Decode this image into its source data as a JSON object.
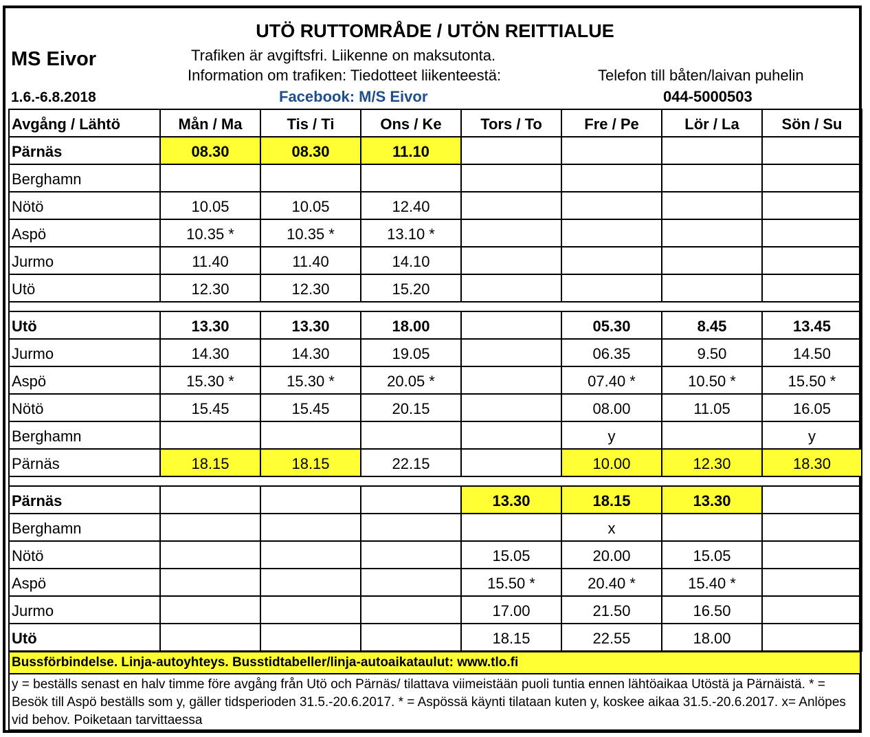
{
  "header": {
    "title": "UTÖ RUTTOMRÅDE / UTÖN REITTIALUE",
    "ship": "MS Eivor",
    "dates": "1.6.-6.8.2018",
    "line1": "Trafiken är avgiftsfri.  Liikenne on maksutonta.",
    "line2": "Information om trafiken: Tiedotteet liikenteestä:",
    "facebook": "Facebook: M/S Eivor",
    "phone_label": "Telefon till båten/laivan puhelin",
    "phone_number": "044-5000503"
  },
  "table": {
    "columns": [
      "Avgång / Lähtö",
      "Mån / Ma",
      "Tis / Ti",
      "Ons / Ke",
      "Tors / To",
      "Fre / Pe",
      "Lör / La",
      "Sön / Su"
    ],
    "sections": [
      {
        "rows": [
          {
            "stop": "Pärnäs",
            "bold": true,
            "cells": [
              "08.30",
              "08.30",
              "11.10",
              "",
              "",
              "",
              ""
            ],
            "highlight": [
              0,
              1,
              2
            ]
          },
          {
            "stop": "Berghamn",
            "cells": [
              "",
              "",
              "",
              "",
              "",
              "",
              ""
            ]
          },
          {
            "stop": "Nötö",
            "cells": [
              "10.05",
              "10.05",
              "12.40",
              "",
              "",
              "",
              ""
            ]
          },
          {
            "stop": "Aspö",
            "cells": [
              "10.35 *",
              "10.35 *",
              "13.10 *",
              "",
              "",
              "",
              ""
            ]
          },
          {
            "stop": "Jurmo",
            "cells": [
              "11.40",
              "11.40",
              "14.10",
              "",
              "",
              "",
              ""
            ]
          },
          {
            "stop": "Utö",
            "cells": [
              "12.30",
              "12.30",
              "15.20",
              "",
              "",
              "",
              ""
            ]
          }
        ]
      },
      {
        "rows": [
          {
            "stop": "Utö",
            "bold": true,
            "cells": [
              "13.30",
              "13.30",
              "18.00",
              "",
              "05.30",
              "8.45",
              "13.45"
            ]
          },
          {
            "stop": "Jurmo",
            "cells": [
              "14.30",
              "14.30",
              "19.05",
              "",
              "06.35",
              "9.50",
              "14.50"
            ]
          },
          {
            "stop": "Aspö",
            "cells": [
              "15.30 *",
              "15.30 *",
              "20.05 *",
              "",
              "07.40 *",
              "10.50 *",
              "15.50 *"
            ]
          },
          {
            "stop": "Nötö",
            "cells": [
              "15.45",
              "15.45",
              "20.15",
              "",
              "08.00",
              "11.05",
              "16.05"
            ]
          },
          {
            "stop": "Berghamn",
            "cells": [
              "",
              "",
              "",
              "",
              "y",
              "",
              "y"
            ]
          },
          {
            "stop": "Pärnäs",
            "cells": [
              "18.15",
              "18.15",
              "22.15",
              "",
              "10.00",
              "12.30",
              "18.30"
            ],
            "highlight": [
              0,
              1,
              4,
              5,
              6
            ]
          }
        ]
      },
      {
        "rows": [
          {
            "stop": "Pärnäs",
            "bold": true,
            "cells": [
              "",
              "",
              "",
              "13.30",
              "18.15",
              "13.30",
              ""
            ],
            "highlight": [
              3,
              4,
              5
            ]
          },
          {
            "stop": "Berghamn",
            "cells": [
              "",
              "",
              "",
              "",
              "x",
              "",
              ""
            ]
          },
          {
            "stop": "Nötö",
            "cells": [
              "",
              "",
              "",
              "15.05",
              "20.00",
              "15.05",
              ""
            ]
          },
          {
            "stop": "Aspö",
            "cells": [
              "",
              "",
              "",
              "15.50 *",
              "20.40 *",
              "15.40 *",
              ""
            ]
          },
          {
            "stop": "Jurmo",
            "cells": [
              "",
              "",
              "",
              "17.00",
              "21.50",
              "16.50",
              ""
            ]
          },
          {
            "stop": "Utö",
            "bold_stop": true,
            "cells": [
              "",
              "",
              "",
              "18.15",
              "22.55",
              "18.00",
              ""
            ]
          }
        ]
      }
    ]
  },
  "footer": {
    "bus": "Bussförbindelse.  Linja-autoyhteys.  Busstidtabeller/linja-autoaikataulut: www.tlo.fi",
    "notes": "y = beställs senast en halv timme före avgång från Utö och Pärnäs/ tilattava viimeistään puoli tuntia ennen lähtöaikaa Utöstä ja Pärnäistä.    * = Besök till Aspö beställs som y, gäller tidsperioden 31.5.-20.6.2017.  * = Aspössä käynti tilataan kuten y, koskee aikaa 31.5.-20.6.2017. x=  Anlöpes vid behov. Poiketaan tarvittaessa"
  },
  "colors": {
    "highlight": "#ffff33",
    "facebook": "#1f4e8c"
  }
}
